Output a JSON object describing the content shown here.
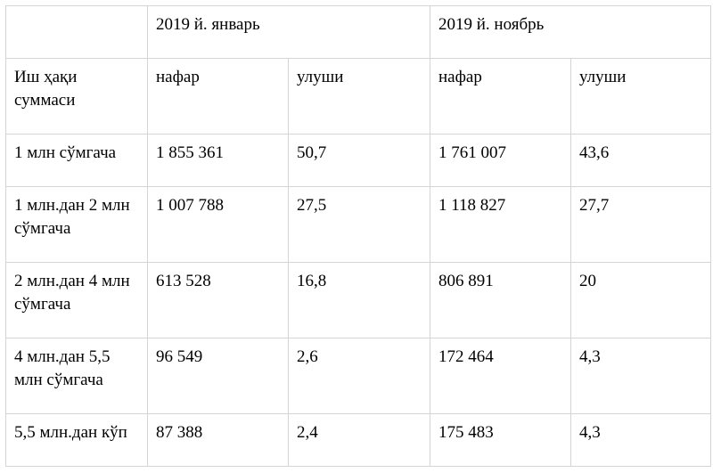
{
  "table": {
    "periods": [
      "2019 й. январь",
      "2019 й. ноябрь"
    ],
    "row_header": "Иш ҳақи суммаси",
    "subheaders": [
      "нафар",
      "улуши",
      "нафар",
      "улуши"
    ],
    "rows": [
      {
        "label": "1 млн сўмгача",
        "values": [
          "1 855 361",
          "50,7",
          "1 761 007",
          "43,6"
        ]
      },
      {
        "label": "1 млн.дан 2 млн сўмгача",
        "values": [
          "1 007 788",
          "27,5",
          "1 118 827",
          "27,7"
        ]
      },
      {
        "label": "2 млн.дан 4 млн сўмгача",
        "values": [
          "613 528",
          "16,8",
          "806 891",
          "20"
        ]
      },
      {
        "label": "4 млн.дан 5,5 млн сўмгача",
        "values": [
          "96 549",
          "2,6",
          "172 464",
          "4,3"
        ]
      },
      {
        "label": "5,5 млн.дан кўп",
        "values": [
          "87 388",
          "2,4",
          "175 483",
          "4,3"
        ]
      }
    ]
  }
}
